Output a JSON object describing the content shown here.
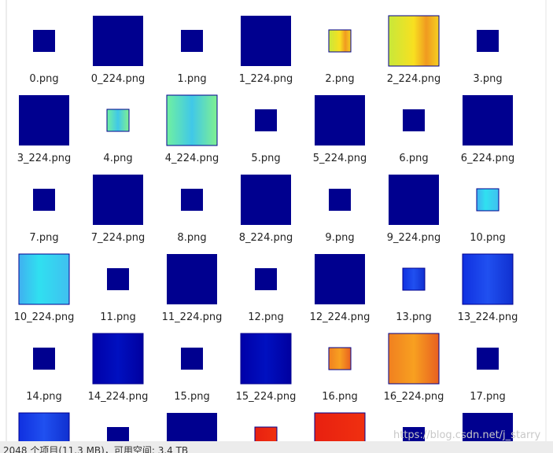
{
  "files": [
    "0.png",
    "0_224.png",
    "1.png",
    "1_224.png",
    "2.png",
    "2_224.png",
    "3.png",
    "3_224.png",
    "4.png",
    "4_224.png",
    "5.png",
    "5_224.png",
    "6.png",
    "6_224.png",
    "7.png",
    "7_224.png",
    "8.png",
    "8_224.png",
    "9.png",
    "9_224.png",
    "10.png",
    "10_224.png",
    "11.png",
    "11_224.png",
    "12.png",
    "12_224.png",
    "13.png",
    "13_224.png",
    "14.png",
    "14_224.png",
    "15.png",
    "15_224.png",
    "16.png",
    "16_224.png",
    "17.png"
  ],
  "status_bar": "2048 个项目(11.3 MB)，可用空间: 3.4 TB",
  "watermark": "https://blog.csdn.net/j_starry"
}
